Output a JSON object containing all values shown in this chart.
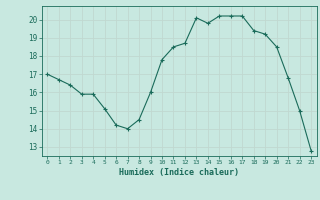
{
  "x": [
    0,
    1,
    2,
    3,
    4,
    5,
    6,
    7,
    8,
    9,
    10,
    11,
    12,
    13,
    14,
    15,
    16,
    17,
    18,
    19,
    20,
    21,
    22,
    23
  ],
  "y": [
    17.0,
    16.7,
    16.4,
    15.9,
    15.9,
    15.1,
    14.2,
    14.0,
    14.5,
    16.0,
    17.8,
    18.5,
    18.7,
    20.1,
    19.8,
    20.2,
    20.2,
    20.2,
    19.4,
    19.2,
    18.5,
    16.8,
    15.0,
    12.8
  ],
  "title": "",
  "xlabel": "Humidex (Indice chaleur)",
  "ylabel": "",
  "ylim": [
    12.5,
    20.75
  ],
  "xlim": [
    -0.5,
    23.5
  ],
  "bg_color": "#c8e8e0",
  "grid_color": "#c0d8d0",
  "line_color": "#1a6b5a",
  "marker_color": "#1a6b5a",
  "yticks": [
    13,
    14,
    15,
    16,
    17,
    18,
    19,
    20
  ],
  "xticks": [
    0,
    1,
    2,
    3,
    4,
    5,
    6,
    7,
    8,
    9,
    10,
    11,
    12,
    13,
    14,
    15,
    16,
    17,
    18,
    19,
    20,
    21,
    22,
    23
  ]
}
